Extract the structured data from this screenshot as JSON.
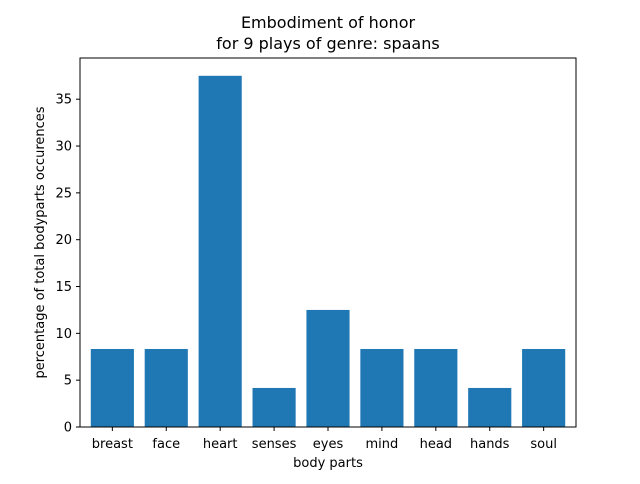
{
  "chart_data": {
    "type": "bar",
    "title": "Embodiment of honor",
    "subtitle": "for 9 plays of genre: spaans",
    "xlabel": "body parts",
    "ylabel": "percentage of total bodyparts occurences",
    "categories": [
      "breast",
      "face",
      "heart",
      "senses",
      "eyes",
      "mind",
      "head",
      "hands",
      "soul"
    ],
    "values": [
      8.33,
      8.33,
      37.5,
      4.17,
      12.5,
      8.33,
      8.33,
      4.17,
      8.33
    ],
    "ylim": [
      0,
      39.4
    ],
    "yticks": [
      0,
      5,
      10,
      15,
      20,
      25,
      30,
      35
    ],
    "grid": false,
    "colors": {
      "bar": "#1f77b4",
      "axis": "#000000"
    }
  }
}
